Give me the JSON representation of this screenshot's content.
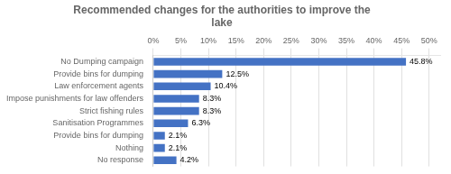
{
  "chart_data": {
    "type": "bar",
    "orientation": "horizontal",
    "title": "Recommended changes for the authorities to improve the\nlake",
    "categories": [
      "No response",
      "Nothing",
      "Provide bins for dumping",
      "Sanitisation Programmes",
      "Strict fishing rules",
      "Impose punishments for law offenders",
      "Law enforcement agents",
      "Provide bins for dumping",
      "No Dumping campaign"
    ],
    "values": [
      4.2,
      2.1,
      2.1,
      6.3,
      8.3,
      8.3,
      10.4,
      12.5,
      45.8
    ],
    "value_labels": [
      "4.2%",
      "2.1%",
      "2.1%",
      "6.3%",
      "8.3%",
      "8.3%",
      "10.4%",
      "12.5%",
      "45.8%"
    ],
    "data_labels": true,
    "color": "#4472c4",
    "xlim": [
      0,
      52
    ],
    "xticks": [
      {
        "value": 0,
        "label": "0%"
      },
      {
        "value": 5,
        "label": "5%"
      },
      {
        "value": 10,
        "label": "10%"
      },
      {
        "value": 15,
        "label": "15%"
      },
      {
        "value": 20,
        "label": "20%"
      },
      {
        "value": 25,
        "label": "25%"
      },
      {
        "value": 30,
        "label": "30%"
      },
      {
        "value": 35,
        "label": "35%"
      },
      {
        "value": 40,
        "label": "40%"
      },
      {
        "value": 45,
        "label": "45%"
      },
      {
        "value": 50,
        "label": "50%"
      }
    ],
    "grid": true
  }
}
